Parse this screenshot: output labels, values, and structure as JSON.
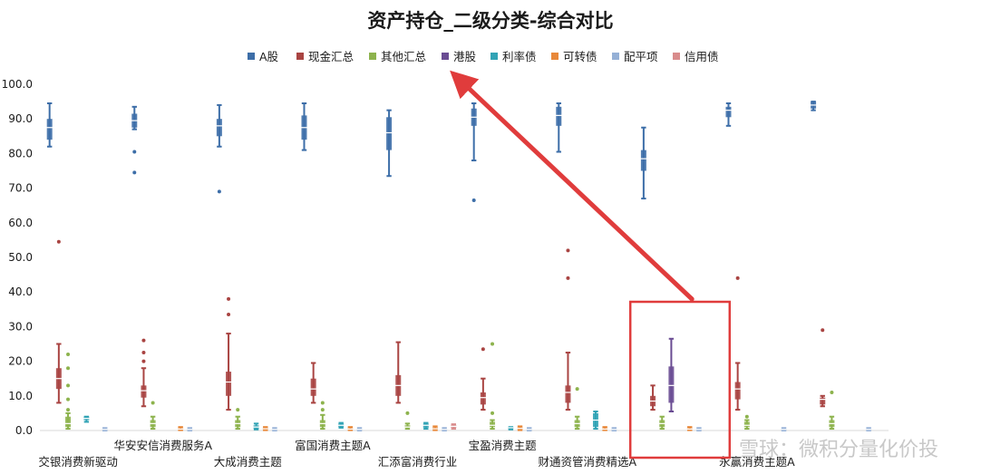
{
  "chart_data": {
    "type": "box",
    "title": "资产持仓_二级分类-综合对比",
    "ylim": [
      0,
      100
    ],
    "yticks": [
      "0.0",
      "10.0",
      "20.0",
      "30.0",
      "40.0",
      "50.0",
      "60.0",
      "70.0",
      "80.0",
      "90.0",
      "100.0"
    ],
    "legend_position": "top",
    "categories": [
      "交银消费新驱动",
      "华安安信消费服务A",
      "大成消费主题",
      "富国消费主题A",
      "汇添富消费行业",
      "宝盈消费主题",
      "财通资管消费精选A",
      "",
      "永赢消费主题A",
      ""
    ],
    "series": [
      {
        "name": "A股",
        "color": "#3d6ea8",
        "boxes": [
          {
            "min": 82,
            "q1": 84,
            "median": 87.5,
            "q3": 90,
            "max": 94.5,
            "outliers": []
          },
          {
            "min": 87,
            "q1": 87.5,
            "median": 89.5,
            "q3": 91.5,
            "max": 93.5,
            "outliers": [
              80.5,
              74.5
            ]
          },
          {
            "min": 82,
            "q1": 85,
            "median": 88,
            "q3": 90,
            "max": 94,
            "outliers": [
              69
            ]
          },
          {
            "min": 81,
            "q1": 84,
            "median": 87.5,
            "q3": 91,
            "max": 94.5,
            "outliers": []
          },
          {
            "min": 73.5,
            "q1": 81,
            "median": 86,
            "q3": 90.5,
            "max": 92.5,
            "outliers": []
          },
          {
            "min": 78,
            "q1": 88,
            "median": 90.5,
            "q3": 93,
            "max": 94.5,
            "outliers": [
              66.5
            ]
          },
          {
            "min": 80.5,
            "q1": 88,
            "median": 91,
            "q3": 93.5,
            "max": 94.5,
            "outliers": []
          },
          {
            "min": 67,
            "q1": 75,
            "median": 78.5,
            "q3": 81,
            "max": 87.5,
            "outliers": []
          },
          {
            "min": 88,
            "q1": 90.5,
            "median": 92.5,
            "q3": 93.5,
            "max": 94.5,
            "outliers": []
          },
          {
            "min": 92.5,
            "q1": 93,
            "median": 94,
            "q3": 95,
            "max": 95,
            "outliers": []
          }
        ]
      },
      {
        "name": "现金汇总",
        "color": "#a94442",
        "boxes": [
          {
            "min": 8,
            "q1": 12,
            "median": 15,
            "q3": 18,
            "max": 25,
            "outliers": [
              54.5
            ]
          },
          {
            "min": 7,
            "q1": 9.5,
            "median": 11.5,
            "q3": 13,
            "max": 18,
            "outliers": [
              26,
              22.5,
              20
            ]
          },
          {
            "min": 6,
            "q1": 10,
            "median": 14,
            "q3": 17,
            "max": 28,
            "outliers": [
              38,
              33.5
            ]
          },
          {
            "min": 8,
            "q1": 10,
            "median": 12,
            "q3": 15,
            "max": 19.5,
            "outliers": []
          },
          {
            "min": 8,
            "q1": 10,
            "median": 13,
            "q3": 16,
            "max": 25.5,
            "outliers": []
          },
          {
            "min": 6,
            "q1": 7.5,
            "median": 9.5,
            "q3": 11,
            "max": 15,
            "outliers": [
              23.5
            ]
          },
          {
            "min": 6,
            "q1": 8,
            "median": 11,
            "q3": 13,
            "max": 22.5,
            "outliers": [
              52,
              44
            ]
          },
          {
            "min": 6,
            "q1": 7,
            "median": 8.5,
            "q3": 10,
            "max": 13,
            "outliers": []
          },
          {
            "min": 6,
            "q1": 9,
            "median": 12,
            "q3": 14,
            "max": 19.5,
            "outliers": [
              44
            ]
          },
          {
            "min": 7,
            "q1": 7.5,
            "median": 9,
            "q3": 9.5,
            "max": 10,
            "outliers": [
              29
            ]
          }
        ]
      },
      {
        "name": "其他汇总",
        "color": "#8db34d",
        "boxes": [
          {
            "min": 0.5,
            "q1": 1,
            "median": 2,
            "q3": 4,
            "max": 5,
            "outliers": [
              22,
              18,
              13,
              9,
              6
            ]
          },
          {
            "min": 0.5,
            "q1": 1,
            "median": 2,
            "q3": 3,
            "max": 4,
            "outliers": [
              8
            ]
          },
          {
            "min": 0.5,
            "q1": 1,
            "median": 2,
            "q3": 3,
            "max": 4,
            "outliers": [
              6
            ]
          },
          {
            "min": 0.5,
            "q1": 1,
            "median": 2,
            "q3": 3,
            "max": 4.5,
            "outliers": [
              8,
              6
            ]
          },
          {
            "min": 0.5,
            "q1": 0.8,
            "median": 1,
            "q3": 1.5,
            "max": 2,
            "outliers": [
              5
            ]
          },
          {
            "min": 0.5,
            "q1": 1,
            "median": 1.5,
            "q3": 2.5,
            "max": 3,
            "outliers": [
              25,
              5
            ]
          },
          {
            "min": 0.5,
            "q1": 1,
            "median": 2,
            "q3": 3,
            "max": 4,
            "outliers": [
              12
            ]
          },
          {
            "min": 0.5,
            "q1": 1,
            "median": 2,
            "q3": 3,
            "max": 4,
            "outliers": []
          },
          {
            "min": 0.5,
            "q1": 1,
            "median": 1.5,
            "q3": 2.5,
            "max": 3,
            "outliers": [
              4
            ]
          },
          {
            "min": 0.5,
            "q1": 1,
            "median": 2,
            "q3": 3,
            "max": 4,
            "outliers": [
              11
            ]
          }
        ]
      },
      {
        "name": "港股",
        "color": "#6a4c93",
        "boxes": [
          null,
          null,
          null,
          null,
          null,
          null,
          null,
          {
            "min": 5.5,
            "q1": 8,
            "median": 13,
            "q3": 18.5,
            "max": 26.5,
            "outliers": []
          },
          null,
          null
        ]
      },
      {
        "name": "利率债",
        "color": "#31a3b5",
        "boxes": [
          {
            "min": 2.5,
            "q1": 3,
            "median": 3.5,
            "q3": 4,
            "max": 4,
            "outliers": []
          },
          null,
          {
            "min": 0.3,
            "q1": 0.5,
            "median": 1,
            "q3": 1.5,
            "max": 2,
            "outliers": []
          },
          {
            "min": 0.8,
            "q1": 1,
            "median": 1.5,
            "q3": 2,
            "max": 2.2,
            "outliers": []
          },
          {
            "min": 0.5,
            "q1": 0.8,
            "median": 1.5,
            "q3": 2,
            "max": 2.2,
            "outliers": []
          },
          {
            "min": 0.3,
            "q1": 0.5,
            "median": 0.8,
            "q3": 1,
            "max": 1,
            "outliers": []
          },
          {
            "min": 0.5,
            "q1": 1,
            "median": 3,
            "q3": 5,
            "max": 5.5,
            "outliers": []
          },
          null,
          null,
          null
        ]
      },
      {
        "name": "可转债",
        "color": "#e8883a",
        "boxes": [
          null,
          {
            "min": 0.1,
            "q1": 0.2,
            "median": 0.4,
            "q3": 0.7,
            "max": 1,
            "outliers": []
          },
          {
            "min": 0.1,
            "q1": 0.2,
            "median": 0.5,
            "q3": 0.8,
            "max": 1,
            "outliers": []
          },
          {
            "min": 0.1,
            "q1": 0.2,
            "median": 0.4,
            "q3": 0.7,
            "max": 1,
            "outliers": []
          },
          {
            "min": 0.1,
            "q1": 0.2,
            "median": 0.5,
            "q3": 0.9,
            "max": 1.2,
            "outliers": []
          },
          {
            "min": 0.1,
            "q1": 0.3,
            "median": 0.6,
            "q3": 0.9,
            "max": 1.2,
            "outliers": []
          },
          {
            "min": 0.1,
            "q1": 0.2,
            "median": 0.4,
            "q3": 0.7,
            "max": 1,
            "outliers": []
          },
          {
            "min": 0.1,
            "q1": 0.2,
            "median": 0.4,
            "q3": 0.7,
            "max": 1,
            "outliers": []
          },
          null,
          null
        ]
      },
      {
        "name": "配平项",
        "color": "#95b0d6",
        "boxes": [
          {
            "min": 0,
            "q1": 0.1,
            "median": 0.3,
            "q3": 0.5,
            "max": 0.7,
            "outliers": []
          },
          {
            "min": 0,
            "q1": 0.1,
            "median": 0.3,
            "q3": 0.5,
            "max": 0.7,
            "outliers": []
          },
          {
            "min": 0,
            "q1": 0.1,
            "median": 0.3,
            "q3": 0.5,
            "max": 0.7,
            "outliers": []
          },
          {
            "min": 0,
            "q1": 0.1,
            "median": 0.3,
            "q3": 0.5,
            "max": 0.7,
            "outliers": []
          },
          {
            "min": 0,
            "q1": 0.1,
            "median": 0.3,
            "q3": 0.5,
            "max": 0.7,
            "outliers": []
          },
          {
            "min": 0,
            "q1": 0.1,
            "median": 0.3,
            "q3": 0.5,
            "max": 0.7,
            "outliers": []
          },
          {
            "min": 0,
            "q1": 0.1,
            "median": 0.3,
            "q3": 0.5,
            "max": 0.7,
            "outliers": []
          },
          {
            "min": 0,
            "q1": 0.1,
            "median": 0.3,
            "q3": 0.5,
            "max": 0.7,
            "outliers": []
          },
          {
            "min": 0,
            "q1": 0.1,
            "median": 0.3,
            "q3": 0.5,
            "max": 0.7,
            "outliers": []
          },
          {
            "min": 0,
            "q1": 0.1,
            "median": 0.3,
            "q3": 0.5,
            "max": 0.7,
            "outliers": []
          }
        ]
      },
      {
        "name": "信用债",
        "color": "#d98c8c",
        "boxes": [
          null,
          null,
          null,
          null,
          {
            "min": 0.5,
            "q1": 0.8,
            "median": 1.2,
            "q3": 1.6,
            "max": 1.8,
            "outliers": []
          },
          null,
          null,
          null,
          null,
          null
        ]
      }
    ]
  },
  "annotation": {
    "highlight_category_index": 7,
    "arrow_target": "legend-港股"
  },
  "watermark": {
    "text": "雪球：微积分量化价投"
  }
}
